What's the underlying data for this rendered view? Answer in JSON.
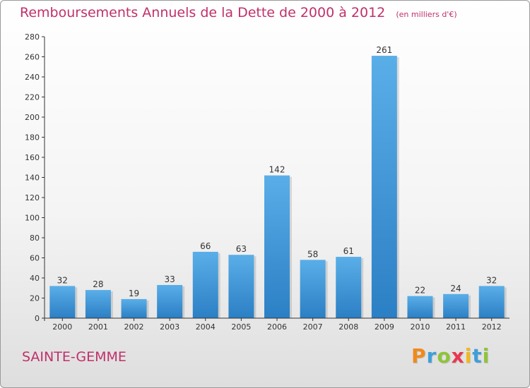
{
  "chart_data": {
    "type": "bar",
    "title": "Remboursements Annuels de la Dette de 2000 à 2012",
    "subtitle": "(en milliers d'€)",
    "categories": [
      "2000",
      "2001",
      "2002",
      "2003",
      "2004",
      "2005",
      "2006",
      "2007",
      "2008",
      "2009",
      "2010",
      "2011",
      "2012"
    ],
    "values": [
      32,
      28,
      19,
      33,
      66,
      63,
      142,
      58,
      61,
      261,
      22,
      24,
      32
    ],
    "ylim": [
      0,
      280
    ],
    "yticks": [
      0,
      20,
      40,
      60,
      80,
      100,
      120,
      140,
      160,
      180,
      200,
      220,
      240,
      260,
      280
    ],
    "grid": false,
    "legend": "none",
    "data_labels": true,
    "bar_color_top": "#5aaee8",
    "bar_color_bottom": "#2b7fc4"
  },
  "footer": {
    "commune": "SAINTE-GEMME",
    "brand_letters": [
      "P",
      "r",
      "o",
      "x",
      "i",
      "t",
      "i"
    ],
    "brand_colors": [
      "#f08a1c",
      "#3f9fd8",
      "#8fc43a",
      "#e8384f",
      "#f0b81c",
      "#3f9fd8",
      "#8fc43a"
    ]
  },
  "colors": {
    "title": "#c0306a",
    "axis": "#333333"
  }
}
